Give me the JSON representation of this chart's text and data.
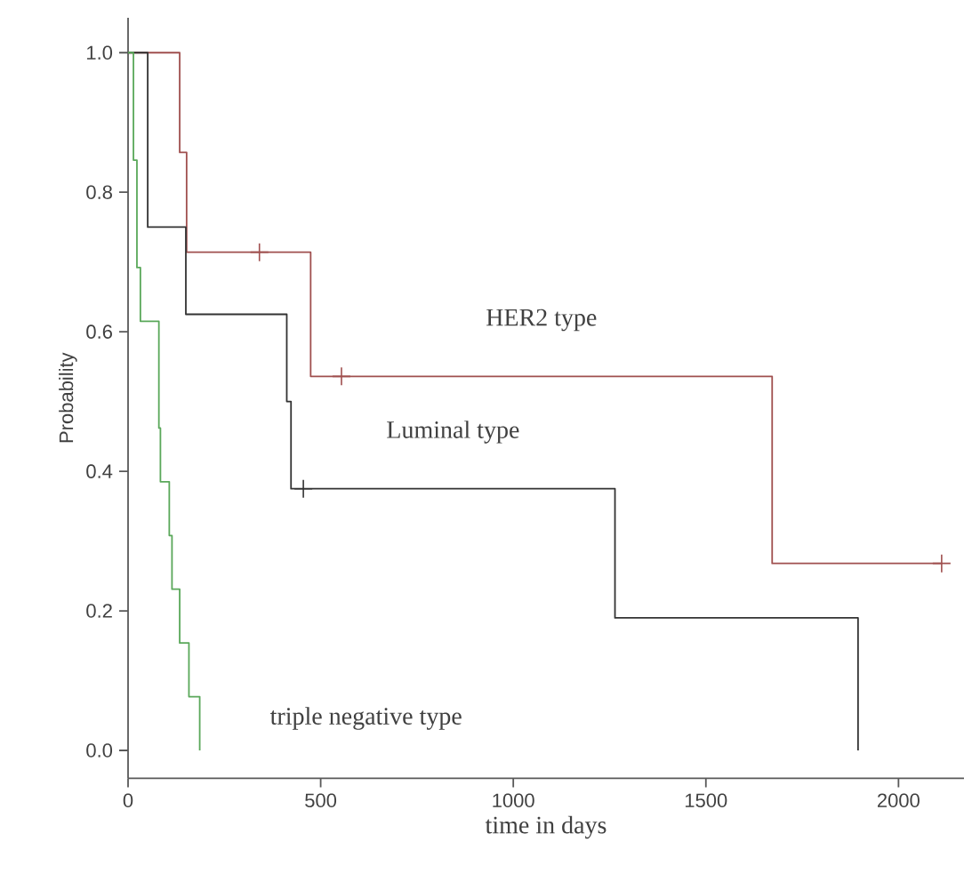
{
  "chart_data": {
    "type": "step",
    "xlabel": "time in days",
    "ylabel": "Probability",
    "xlim": [
      0,
      2170
    ],
    "ylim": [
      -0.04,
      1.05
    ],
    "xticks": [
      0,
      500,
      1000,
      1500,
      2000
    ],
    "yticks": [
      {
        "value": 0,
        "label": "0.0"
      },
      {
        "value": 0.2,
        "label": "0.2"
      },
      {
        "value": 0.4,
        "label": "0.4"
      },
      {
        "value": 0.6,
        "label": "0.6"
      },
      {
        "value": 0.8,
        "label": "0.8"
      },
      {
        "value": 1,
        "label": "1.0"
      }
    ],
    "grid": false,
    "legend": false,
    "series": [
      {
        "name": "HER2 type",
        "color": "#a0504f",
        "x": [
          0,
          134,
          152,
          474,
          1672,
          2112
        ],
        "values": [
          1,
          0.857,
          0.714,
          0.536,
          0.268,
          0.268
        ]
      },
      {
        "name": "Luminal type",
        "color": "#333333",
        "x": [
          0,
          51,
          150,
          412,
          423,
          1264,
          1895
        ],
        "values": [
          1,
          0.75,
          0.625,
          0.5,
          0.375,
          0.19,
          0
        ]
      },
      {
        "name": "triple negative type",
        "color": "#5aa85a",
        "x": [
          0,
          14,
          23,
          32,
          80,
          84,
          107,
          114,
          134,
          158,
          186
        ],
        "values": [
          1,
          0.846,
          0.692,
          0.615,
          0.462,
          0.385,
          0.308,
          0.231,
          0.154,
          0.077,
          0
        ]
      },
      {
        "type": "scatter",
        "marker": "cross",
        "color": "#a0504f",
        "x": [
          341,
          554,
          2112
        ],
        "values": [
          0.714,
          0.536,
          0.268
        ]
      },
      {
        "type": "scatter",
        "marker": "cross",
        "color": "#333333",
        "x": [
          455
        ],
        "values": [
          0.375
        ]
      }
    ]
  }
}
